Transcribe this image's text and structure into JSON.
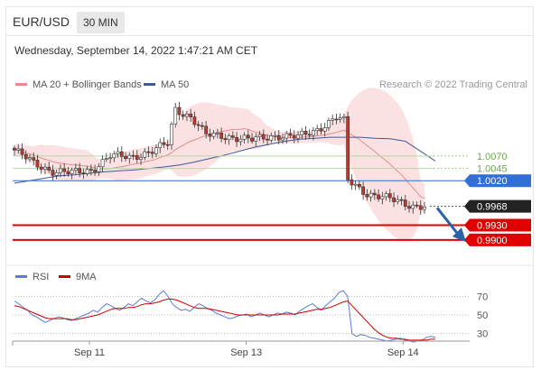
{
  "header": {
    "pair": "EUR/USD",
    "timeframe": "30 MIN"
  },
  "datetime": "Wednesday, September 14, 2022 1:47:21 AM CET",
  "legend": {
    "items": [
      {
        "label": "MA 20 + Bollinger Bands",
        "color": "#e88b8b"
      },
      {
        "label": "MA 50",
        "color": "#3d5a99"
      }
    ],
    "credit": "Research © 2022 Trading Central"
  },
  "rsi_legend": {
    "items": [
      {
        "label": "RSI",
        "color": "#5b7bd5"
      },
      {
        "label": "9MA",
        "color": "#cc0000"
      }
    ]
  },
  "chart_data": [
    {
      "type": "line",
      "subtype": "candlestick",
      "title": "EUR/USD",
      "x_ticks": [
        "Sep 11",
        "Sep 13",
        "Sep 14"
      ],
      "x_range": [
        0,
        124
      ],
      "y_range": [
        0.9865,
        1.0185
      ],
      "x_tick_positions": [
        22,
        68,
        114
      ],
      "levels": [
        {
          "value": 1.007,
          "label": "1.0070",
          "kind": "resistance",
          "color": "#6aa84f"
        },
        {
          "value": 1.0045,
          "label": "1.0045",
          "kind": "resistance",
          "color": "#6aa84f"
        },
        {
          "value": 1.002,
          "label": "1.0020",
          "kind": "pivot",
          "color": "#2f6fd6"
        },
        {
          "value": 0.9968,
          "label": "0.9968",
          "kind": "last price",
          "color": "#222222"
        },
        {
          "value": 0.993,
          "label": "0.9930",
          "kind": "support",
          "color": "#e00000"
        },
        {
          "value": 0.99,
          "label": "0.9900",
          "kind": "support",
          "color": "#e00000"
        }
      ],
      "projection": {
        "from_value": 0.9965,
        "to_value": 0.9905,
        "direction": "down",
        "color": "#2a62a8"
      },
      "ma50": [
        1.0015,
        1.002,
        1.0025,
        1.003,
        1.0032,
        1.0035,
        1.0038,
        1.004,
        1.0042,
        1.0045,
        1.0048,
        1.0052,
        1.0058,
        1.0065,
        1.0072,
        1.008,
        1.0088,
        1.0094,
        1.01,
        1.0104,
        1.0106,
        1.0108,
        1.0108,
        1.0108,
        1.0106,
        1.0105,
        1.01,
        1.008,
        1.006
      ]
    },
    {
      "type": "line",
      "title": "RSI",
      "y_range": [
        20,
        80
      ],
      "y_ticks": [
        70,
        50,
        30
      ],
      "series": [
        {
          "name": "RSI",
          "color": "#5b7bd5",
          "values": [
            65,
            62,
            58,
            55,
            50,
            48,
            45,
            42,
            44,
            46,
            48,
            47,
            45,
            44,
            46,
            48,
            50,
            52,
            55,
            53,
            58,
            62,
            60,
            57,
            55,
            58,
            62,
            60,
            64,
            68,
            65,
            63,
            66,
            72,
            76,
            70,
            62,
            58,
            55,
            56,
            54,
            58,
            62,
            60,
            57,
            55,
            52,
            50,
            48,
            46,
            47,
            49,
            50,
            51,
            48,
            50,
            52,
            50,
            48,
            50,
            52,
            51,
            53,
            52,
            50,
            54,
            57,
            60,
            62,
            58,
            55,
            60,
            64,
            68,
            74,
            76,
            70,
            30,
            27,
            29,
            28,
            26,
            25,
            24,
            23,
            22,
            23,
            24,
            25,
            23,
            22,
            21,
            22,
            23,
            26,
            27,
            26
          ]
        },
        {
          "name": "9MA",
          "color": "#cc0000",
          "values": [
            60,
            59,
            57,
            55,
            53,
            51,
            49,
            47,
            46,
            46,
            46,
            46,
            46,
            45,
            45,
            46,
            47,
            48,
            49,
            50,
            52,
            54,
            56,
            57,
            57,
            57,
            58,
            58,
            59,
            61,
            62,
            62,
            63,
            64,
            66,
            67,
            67,
            66,
            64,
            62,
            60,
            58,
            57,
            57,
            57,
            56,
            55,
            54,
            53,
            52,
            51,
            50,
            50,
            50,
            50,
            50,
            50,
            50,
            50,
            50,
            50,
            51,
            51,
            51,
            51,
            52,
            53,
            54,
            55,
            56,
            56,
            57,
            58,
            60,
            62,
            64,
            65,
            60,
            55,
            50,
            45,
            40,
            35,
            31,
            28,
            26,
            25,
            25,
            24,
            24,
            23,
            23,
            23,
            23,
            23,
            24,
            24
          ]
        }
      ]
    }
  ]
}
